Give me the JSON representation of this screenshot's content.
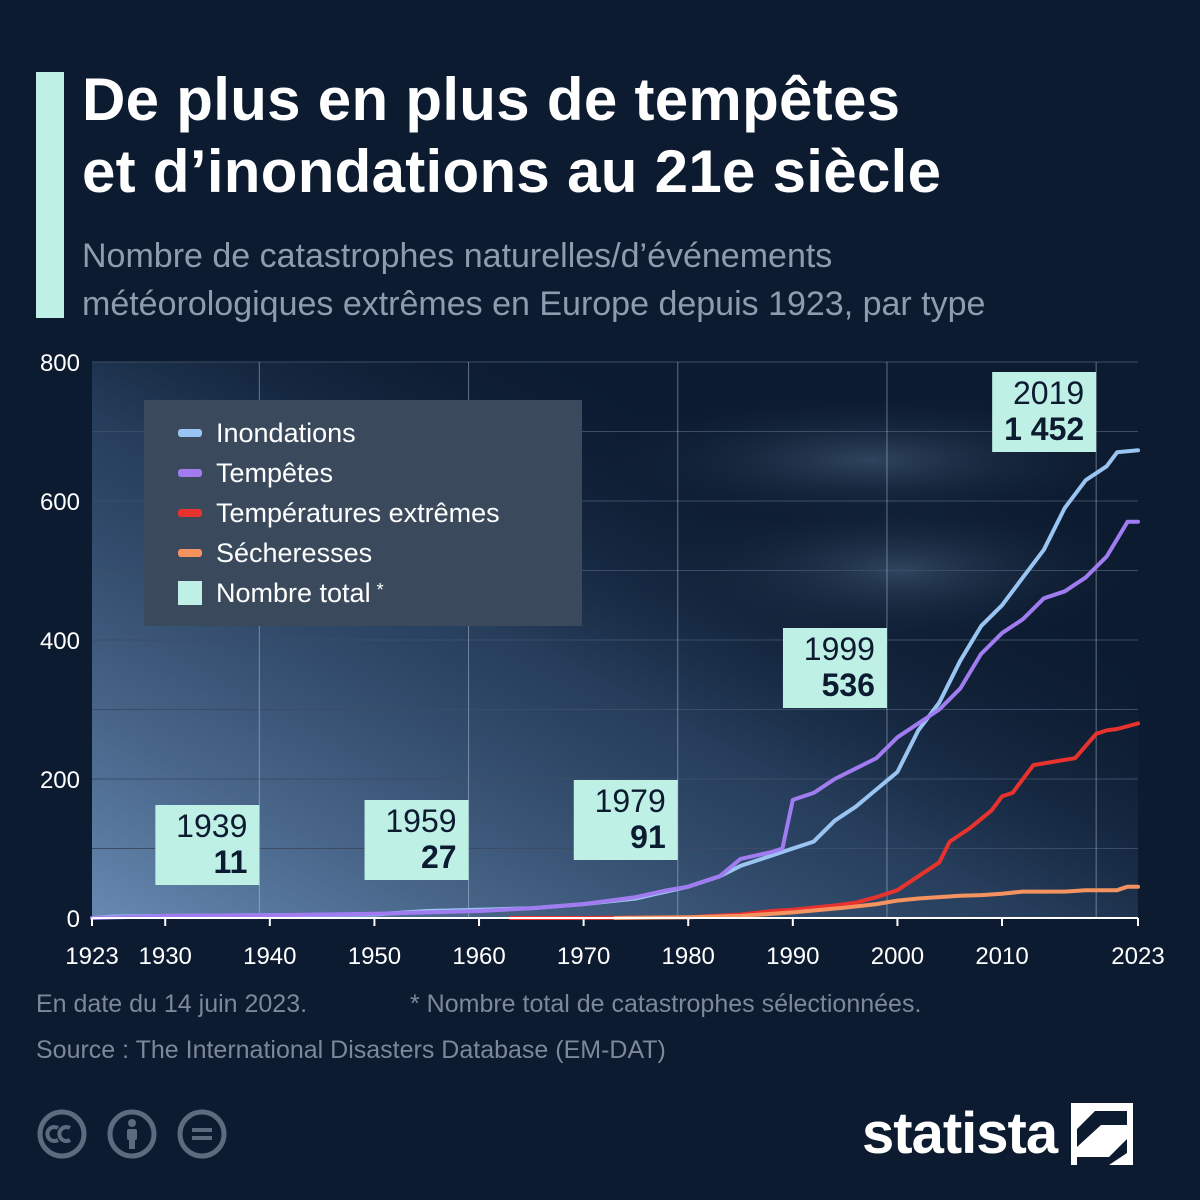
{
  "header": {
    "title_line1": "De plus en plus de tempêtes",
    "title_line2": "et d’inondations au 21e siècle",
    "subtitle_line1": "Nombre de catastrophes naturelles/d’événements",
    "subtitle_line2": "météorologiques extrêmes en Europe depuis 1923, par type"
  },
  "footer": {
    "date_note": "En date du 14 juin 2023.",
    "footnote": "* Nombre total de catastrophes sélectionnées.",
    "source": "Source : The International Disasters Database (EM-DAT)",
    "brand": "statista"
  },
  "icons": [
    "cc-icon",
    "attribution-icon",
    "no-derivatives-icon",
    "statista-logo-icon"
  ],
  "chart_data": {
    "type": "line",
    "ylim": [
      0,
      800
    ],
    "xlim": [
      1923,
      2023
    ],
    "y_ticks": [
      0,
      200,
      400,
      600,
      800
    ],
    "x_ticks": [
      1923,
      1930,
      1940,
      1950,
      1960,
      1970,
      1980,
      1990,
      2000,
      2010,
      2023
    ],
    "grid": true,
    "legend_position": "top-left",
    "legend": [
      {
        "label": "Inondations",
        "color": "#9ac4f2"
      },
      {
        "label": "Tempêtes",
        "color": "#a07cf0"
      },
      {
        "label": "Températures extrêmes",
        "color": "#e8322e"
      },
      {
        "label": "Sécheresses",
        "color": "#f4935f"
      },
      {
        "label": "Nombre total",
        "suffix": "*",
        "color": "#bff0e6"
      }
    ],
    "series": [
      {
        "name": "Inondations",
        "color": "#9ac4f2",
        "x": [
          1923,
          1925,
          1930,
          1940,
          1950,
          1953,
          1955,
          1960,
          1965,
          1970,
          1975,
          1977,
          1980,
          1983,
          1985,
          1988,
          1990,
          1992,
          1994,
          1996,
          1998,
          2000,
          2002,
          2004,
          2006,
          2008,
          2010,
          2012,
          2014,
          2016,
          2018,
          2020,
          2021,
          2023
        ],
        "y": [
          0,
          2,
          3,
          4,
          5,
          8,
          10,
          12,
          14,
          20,
          28,
          35,
          45,
          60,
          75,
          90,
          100,
          110,
          140,
          160,
          185,
          210,
          270,
          310,
          370,
          420,
          450,
          490,
          530,
          590,
          630,
          650,
          670,
          673
        ]
      },
      {
        "name": "Tempêtes",
        "color": "#a07cf0",
        "x": [
          1923,
          1930,
          1940,
          1950,
          1955,
          1960,
          1965,
          1970,
          1975,
          1978,
          1980,
          1983,
          1985,
          1988,
          1989,
          1990,
          1992,
          1994,
          1996,
          1998,
          2000,
          2002,
          2004,
          2006,
          2008,
          2010,
          2012,
          2014,
          2016,
          2018,
          2020,
          2021,
          2022,
          2023
        ],
        "y": [
          0,
          3,
          4,
          6,
          8,
          10,
          14,
          20,
          30,
          40,
          45,
          60,
          85,
          95,
          100,
          170,
          180,
          200,
          215,
          230,
          260,
          280,
          300,
          330,
          380,
          410,
          430,
          460,
          470,
          490,
          520,
          545,
          570,
          570
        ]
      },
      {
        "name": "Températures extrêmes",
        "color": "#e8322e",
        "x": [
          1963,
          1970,
          1980,
          1985,
          1988,
          1990,
          1992,
          1994,
          1996,
          1998,
          2000,
          2002,
          2004,
          2005,
          2007,
          2009,
          2010,
          2011,
          2013,
          2015,
          2017,
          2019,
          2020,
          2021,
          2023
        ],
        "y": [
          0,
          0,
          1,
          5,
          10,
          12,
          15,
          18,
          22,
          30,
          40,
          60,
          80,
          110,
          130,
          155,
          175,
          180,
          220,
          225,
          230,
          265,
          270,
          272,
          280
        ]
      },
      {
        "name": "Sécheresses",
        "color": "#f4935f",
        "x": [
          1973,
          1980,
          1985,
          1990,
          1995,
          1998,
          2000,
          2002,
          2004,
          2006,
          2008,
          2010,
          2012,
          2014,
          2016,
          2018,
          2020,
          2021,
          2022,
          2023
        ],
        "y": [
          0,
          1,
          3,
          8,
          15,
          20,
          25,
          28,
          30,
          32,
          33,
          35,
          38,
          38,
          38,
          40,
          40,
          40,
          45,
          45
        ]
      }
    ],
    "annotations": [
      {
        "year": "1939",
        "total": "11"
      },
      {
        "year": "1959",
        "total": "27"
      },
      {
        "year": "1979",
        "total": "91"
      },
      {
        "year": "1999",
        "total": "536"
      },
      {
        "year": "2019",
        "total": "1 452"
      }
    ]
  }
}
